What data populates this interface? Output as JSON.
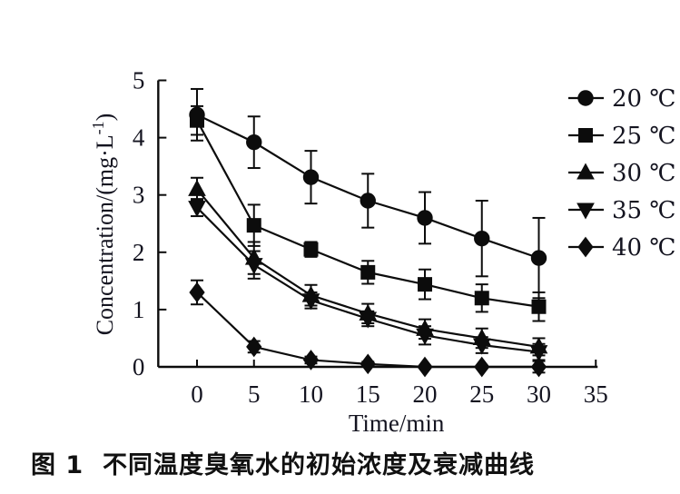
{
  "figure": {
    "caption": "图 1  不同温度臭氧水的初始浓度及衰减曲线"
  },
  "chart_data": {
    "type": "line",
    "title": "",
    "xlabel": "Time/min",
    "ylabel": "Concentration/(mg·L⁻¹)",
    "ylabel_parts": {
      "pre": "Concentration/(mg·L",
      "sup": "-1",
      "post": ")"
    },
    "x": [
      0,
      5,
      10,
      15,
      20,
      25,
      30
    ],
    "x_ticks": [
      0,
      5,
      10,
      15,
      20,
      25,
      30,
      35
    ],
    "y_ticks": [
      0,
      1,
      2,
      3,
      4,
      5
    ],
    "xlim": [
      -3.4,
      35
    ],
    "ylim": [
      0,
      5
    ],
    "grid": false,
    "error_bars": true,
    "legend_position": "right",
    "marker_color": "#0c0c0c",
    "line_color": "#0c0c0c",
    "series": [
      {
        "name": "20 ℃",
        "marker": "circle",
        "values": [
          4.4,
          3.92,
          3.31,
          2.9,
          2.6,
          2.24,
          1.9
        ],
        "errors": [
          0.45,
          0.45,
          0.46,
          0.47,
          0.45,
          0.66,
          0.7
        ]
      },
      {
        "name": "25 ℃",
        "marker": "square",
        "values": [
          4.3,
          2.47,
          2.05,
          1.65,
          1.44,
          1.2,
          1.05
        ],
        "errors": [
          0.25,
          0.36,
          0.13,
          0.2,
          0.26,
          0.24,
          0.25
        ]
      },
      {
        "name": "30 ℃",
        "marker": "triangle-up",
        "values": [
          3.1,
          1.9,
          1.25,
          0.93,
          0.66,
          0.5,
          0.35
        ],
        "errors": [
          0.2,
          0.28,
          0.18,
          0.17,
          0.17,
          0.17,
          0.15
        ]
      },
      {
        "name": "35 ℃",
        "marker": "triangle-down",
        "values": [
          2.78,
          1.78,
          1.16,
          0.84,
          0.55,
          0.38,
          0.26
        ],
        "errors": [
          0.15,
          0.24,
          0.14,
          0.13,
          0.16,
          0.14,
          0.14
        ]
      },
      {
        "name": "40 ℃",
        "marker": "diamond",
        "values": [
          1.3,
          0.35,
          0.12,
          0.05,
          0.0,
          0.0,
          0.0
        ],
        "errors": [
          0.21,
          0.1,
          0.06,
          0.04,
          0.02,
          0.02,
          0.1
        ]
      }
    ]
  }
}
